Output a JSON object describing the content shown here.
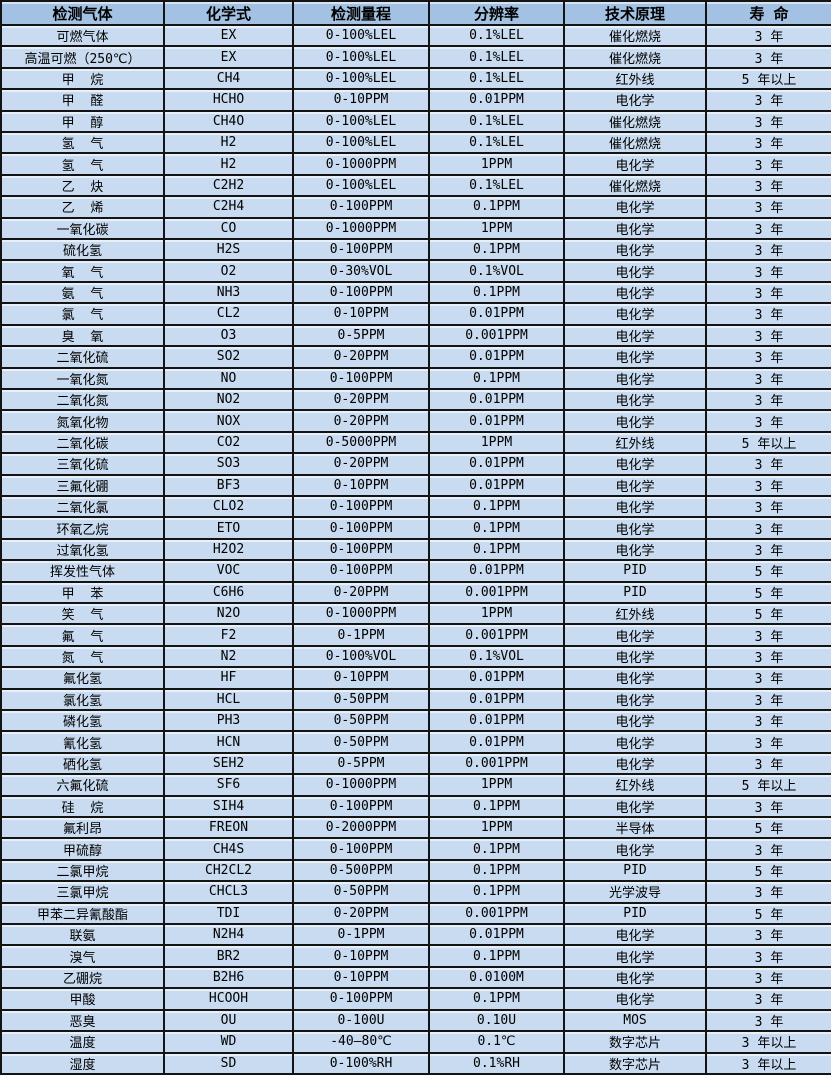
{
  "colors": {
    "header_bg": "#a3c2e3",
    "row_bg": "#c9dbf0",
    "border": "#141414",
    "text": "#000000"
  },
  "table": {
    "columns": [
      "检测气体",
      "化学式",
      "检测量程",
      "分辨率",
      "技术原理",
      "寿 命"
    ],
    "column_keys": [
      "gas",
      "formula",
      "range",
      "resolution",
      "principle",
      "lifespan"
    ],
    "rows": [
      [
        "可燃气体",
        "EX",
        "0-100%LEL",
        "0.1%LEL",
        "催化燃烧",
        "3 年"
      ],
      [
        "高温可燃（250℃）",
        "EX",
        "0-100%LEL",
        "0.1%LEL",
        "催化燃烧",
        "3 年"
      ],
      [
        "甲  烷",
        "CH4",
        "0-100%LEL",
        "0.1%LEL",
        "红外线",
        "5 年以上"
      ],
      [
        "甲  醛",
        "HCHO",
        "0-10PPM",
        "0.01PPM",
        "电化学",
        "3 年"
      ],
      [
        "甲  醇",
        "CH4O",
        "0-100%LEL",
        "0.1%LEL",
        "催化燃烧",
        "3 年"
      ],
      [
        "氢  气",
        "H2",
        "0-100%LEL",
        "0.1%LEL",
        "催化燃烧",
        "3 年"
      ],
      [
        "氢  气",
        "H2",
        "0-1000PPM",
        "1PPM",
        "电化学",
        "3 年"
      ],
      [
        "乙  炔",
        "C2H2",
        "0-100%LEL",
        "0.1%LEL",
        "催化燃烧",
        "3 年"
      ],
      [
        "乙  烯",
        "C2H4",
        "0-100PPM",
        "0.1PPM",
        "电化学",
        "3 年"
      ],
      [
        "一氧化碳",
        "CO",
        "0-1000PPM",
        "1PPM",
        "电化学",
        "3 年"
      ],
      [
        "硫化氢",
        "H2S",
        "0-100PPM",
        "0.1PPM",
        "电化学",
        "3 年"
      ],
      [
        "氧  气",
        "O2",
        "0-30%VOL",
        "0.1%VOL",
        "电化学",
        "3 年"
      ],
      [
        "氨  气",
        "NH3",
        "0-100PPM",
        "0.1PPM",
        "电化学",
        "3 年"
      ],
      [
        "氯  气",
        "CL2",
        "0-10PPM",
        "0.01PPM",
        "电化学",
        "3 年"
      ],
      [
        "臭  氧",
        "O3",
        "0-5PPM",
        "0.001PPM",
        "电化学",
        "3 年"
      ],
      [
        "二氧化硫",
        "SO2",
        "0-20PPM",
        "0.01PPM",
        "电化学",
        "3 年"
      ],
      [
        "一氧化氮",
        "NO",
        "0-100PPM",
        "0.1PPM",
        "电化学",
        "3 年"
      ],
      [
        "二氧化氮",
        "NO2",
        "0-20PPM",
        "0.01PPM",
        "电化学",
        "3 年"
      ],
      [
        "氮氧化物",
        "NOX",
        "0-20PPM",
        "0.01PPM",
        "电化学",
        "3 年"
      ],
      [
        "二氧化碳",
        "CO2",
        "0-5000PPM",
        "1PPM",
        "红外线",
        "5 年以上"
      ],
      [
        "三氧化硫",
        "SO3",
        "0-20PPM",
        "0.01PPM",
        "电化学",
        "3 年"
      ],
      [
        "三氟化硼",
        "BF3",
        "0-10PPM",
        "0.01PPM",
        "电化学",
        "3 年"
      ],
      [
        "二氧化氯",
        "CLO2",
        "0-100PPM",
        "0.1PPM",
        "电化学",
        "3 年"
      ],
      [
        "环氧乙烷",
        "ETO",
        "0-100PPM",
        "0.1PPM",
        "电化学",
        "3 年"
      ],
      [
        "过氧化氢",
        "H2O2",
        "0-100PPM",
        "0.1PPM",
        "电化学",
        "3 年"
      ],
      [
        "挥发性气体",
        "VOC",
        "0-100PPM",
        "0.01PPM",
        "PID",
        "5 年"
      ],
      [
        "甲  苯",
        "C6H6",
        "0-20PPM",
        "0.001PPM",
        "PID",
        "5 年"
      ],
      [
        "笑  气",
        "N2O",
        "0-1000PPM",
        "1PPM",
        "红外线",
        "5 年"
      ],
      [
        "氟  气",
        "F2",
        "0-1PPM",
        "0.001PPM",
        "电化学",
        "3 年"
      ],
      [
        "氮  气",
        "N2",
        "0-100%VOL",
        "0.1%VOL",
        "电化学",
        "3 年"
      ],
      [
        "氟化氢",
        "HF",
        "0-10PPM",
        "0.01PPM",
        "电化学",
        "3 年"
      ],
      [
        "氯化氢",
        "HCL",
        "0-50PPM",
        "0.01PPM",
        "电化学",
        "3 年"
      ],
      [
        "磷化氢",
        "PH3",
        "0-50PPM",
        "0.01PPM",
        "电化学",
        "3 年"
      ],
      [
        "氰化氢",
        "HCN",
        "0-50PPM",
        "0.01PPM",
        "电化学",
        "3 年"
      ],
      [
        "硒化氢",
        "SEH2",
        "0-5PPM",
        "0.001PPM",
        "电化学",
        "3 年"
      ],
      [
        "六氟化硫",
        "SF6",
        "0-1000PPM",
        "1PPM",
        "红外线",
        "5 年以上"
      ],
      [
        "硅  烷",
        "SIH4",
        "0-100PPM",
        "0.1PPM",
        "电化学",
        "3 年"
      ],
      [
        "氟利昂",
        "FREON",
        "0-2000PPM",
        "1PPM",
        "半导体",
        "5 年"
      ],
      [
        "甲硫醇",
        "CH4S",
        "0-100PPM",
        "0.1PPM",
        "电化学",
        "3 年"
      ],
      [
        "二氯甲烷",
        "CH2CL2",
        "0-500PPM",
        "0.1PPM",
        "PID",
        "5 年"
      ],
      [
        "三氯甲烷",
        "CHCL3",
        "0-50PPM",
        "0.1PPM",
        "光学波导",
        "3 年"
      ],
      [
        "甲苯二异氰酸酯",
        "TDI",
        "0-20PPM",
        "0.001PPM",
        "PID",
        "5 年"
      ],
      [
        "联氨",
        "N2H4",
        "0-1PPM",
        "0.01PPM",
        "电化学",
        "3 年"
      ],
      [
        "溴气",
        "BR2",
        "0-10PPM",
        "0.1PPM",
        "电化学",
        "3 年"
      ],
      [
        "乙硼烷",
        "B2H6",
        "0-10PPM",
        "0.0100M",
        "电化学",
        "3 年"
      ],
      [
        "甲酸",
        "HCOOH",
        "0-100PPM",
        "0.1PPM",
        "电化学",
        "3 年"
      ],
      [
        "恶臭",
        "OU",
        "0-100U",
        "0.10U",
        "MOS",
        "3 年"
      ],
      [
        "温度",
        "WD",
        "-40—80℃",
        "0.1℃",
        "数字芯片",
        "3 年以上"
      ],
      [
        "湿度",
        "SD",
        "0-100%RH",
        "0.1%RH",
        "数字芯片",
        "3 年以上"
      ]
    ]
  }
}
